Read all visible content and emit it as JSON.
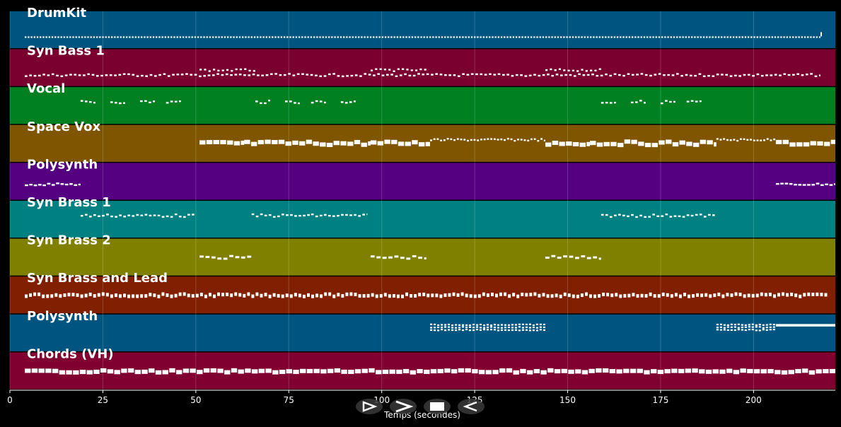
{
  "x_axis": {
    "label": "Temps (secondes)",
    "ticks": [
      0,
      25,
      50,
      75,
      100,
      125,
      150,
      175,
      200
    ],
    "range": [
      0,
      222
    ]
  },
  "colors": {
    "background": "#000000",
    "note": "#ffffff",
    "grid": "#ffffff"
  },
  "tracks": [
    {
      "name": "DrumKit",
      "color": "#005580",
      "style": "dense",
      "segments": [
        [
          4,
          218
        ]
      ],
      "extra": [
        [
          218,
          1
        ]
      ]
    },
    {
      "name": "Syn Bass 1",
      "color": "#7a0030",
      "style": "bass",
      "segments": [
        [
          4,
          218
        ]
      ],
      "raised": [
        [
          51,
          66
        ],
        [
          97,
          112
        ],
        [
          144,
          159
        ]
      ]
    },
    {
      "name": "Vocal",
      "color": "#008020",
      "style": "phrase",
      "segments": [
        [
          19,
          23
        ],
        [
          27,
          31
        ],
        [
          35,
          39
        ],
        [
          42,
          46
        ],
        [
          66,
          70
        ],
        [
          74,
          78
        ],
        [
          81,
          85
        ],
        [
          89,
          93
        ],
        [
          159,
          163
        ],
        [
          167,
          171
        ],
        [
          175,
          179
        ],
        [
          182,
          186
        ]
      ]
    },
    {
      "name": "Space Vox",
      "color": "#805500",
      "style": "sustain-mixed",
      "sustain": [
        [
          51,
          63
        ],
        [
          63,
          97
        ],
        [
          97,
          113
        ],
        [
          144,
          156
        ],
        [
          156,
          190
        ],
        [
          206,
          222
        ]
      ],
      "busy": [
        [
          113,
          144
        ],
        [
          190,
          206
        ]
      ]
    },
    {
      "name": "Polysynth",
      "color": "#550080",
      "style": "sparse",
      "segments": [
        [
          4,
          19
        ],
        [
          206,
          222
        ]
      ]
    },
    {
      "name": "Syn Brass 1",
      "color": "#008080",
      "style": "phrase",
      "segments": [
        [
          19,
          50
        ],
        [
          65,
          81
        ],
        [
          81,
          96
        ],
        [
          159,
          190
        ]
      ]
    },
    {
      "name": "Syn Brass 2",
      "color": "#808000",
      "style": "blocks",
      "segments": [
        [
          51,
          65
        ],
        [
          97,
          112
        ],
        [
          144,
          159
        ]
      ]
    },
    {
      "name": "Syn Brass and Lead",
      "color": "#802000",
      "style": "lead",
      "segments": [
        [
          4,
          220
        ]
      ]
    },
    {
      "name": "Polysynth",
      "color": "#005580",
      "style": "chordstack",
      "segments": [
        [
          113,
          144
        ],
        [
          190,
          206
        ]
      ],
      "sustain": [
        [
          206,
          222
        ]
      ]
    },
    {
      "name": "Chords (VH)",
      "color": "#800030",
      "style": "chords",
      "segments": [
        [
          4,
          222
        ]
      ]
    }
  ],
  "transport": [
    {
      "id": "play-button",
      "icon": "play-icon"
    },
    {
      "id": "forward-button",
      "icon": "forward-icon"
    },
    {
      "id": "stop-button",
      "icon": "stop-icon"
    },
    {
      "id": "rewind-button",
      "icon": "rewind-icon"
    }
  ]
}
